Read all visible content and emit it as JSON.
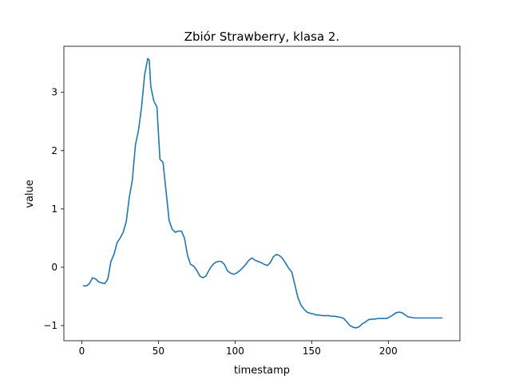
{
  "chart_data": {
    "type": "line",
    "title": "Zbiór Strawberry, klasa 2.",
    "xlabel": "timestamp",
    "ylabel": "value",
    "xlim": [
      -11.7,
      246.7
    ],
    "ylim": [
      -1.26,
      3.79
    ],
    "xticks": [
      0,
      50,
      100,
      150,
      200
    ],
    "yticks": [
      -1,
      0,
      1,
      2,
      3
    ],
    "grid": false,
    "line_color": "#1f77b4",
    "series": [
      {
        "x": [
          1,
          3,
          5,
          7,
          9,
          11,
          13,
          15,
          17,
          19,
          21,
          23,
          25,
          27,
          29,
          31,
          33,
          35,
          37,
          39,
          41,
          43,
          44,
          45,
          47,
          49,
          51,
          53,
          55,
          57,
          59,
          61,
          63,
          65,
          67,
          69,
          71,
          73,
          75,
          77,
          79,
          81,
          83,
          85,
          87,
          89,
          91,
          93,
          95,
          97,
          99,
          101,
          103,
          105,
          107,
          109,
          111,
          113,
          115,
          117,
          119,
          121,
          123,
          125,
          127,
          129,
          131,
          133,
          135,
          137,
          139,
          141,
          143,
          145,
          147,
          149,
          151,
          153,
          155,
          157,
          159,
          161,
          163,
          165,
          167,
          169,
          171,
          173,
          175,
          177,
          179,
          181,
          183,
          185,
          187,
          189,
          191,
          193,
          195,
          197,
          199,
          201,
          203,
          205,
          207,
          209,
          211,
          213,
          215,
          217,
          219,
          221,
          223,
          225,
          227,
          229,
          231,
          233,
          235
        ],
        "y": [
          -0.32,
          -0.32,
          -0.28,
          -0.18,
          -0.2,
          -0.25,
          -0.27,
          -0.28,
          -0.2,
          0.1,
          0.22,
          0.42,
          0.5,
          0.6,
          0.78,
          1.2,
          1.5,
          2.1,
          2.35,
          2.75,
          3.3,
          3.58,
          3.55,
          3.1,
          2.85,
          2.75,
          1.85,
          1.8,
          1.3,
          0.8,
          0.65,
          0.6,
          0.62,
          0.62,
          0.5,
          0.2,
          0.05,
          0.02,
          -0.05,
          -0.15,
          -0.18,
          -0.15,
          -0.05,
          0.03,
          0.08,
          0.1,
          0.1,
          0.05,
          -0.06,
          -0.1,
          -0.12,
          -0.1,
          -0.06,
          -0.01,
          0.05,
          0.12,
          0.16,
          0.12,
          0.1,
          0.08,
          0.05,
          0.03,
          0.08,
          0.18,
          0.22,
          0.2,
          0.15,
          0.07,
          -0.02,
          -0.08,
          -0.3,
          -0.52,
          -0.65,
          -0.72,
          -0.77,
          -0.79,
          -0.8,
          -0.82,
          -0.82,
          -0.83,
          -0.83,
          -0.83,
          -0.84,
          -0.84,
          -0.85,
          -0.86,
          -0.88,
          -0.94,
          -1.0,
          -1.03,
          -1.04,
          -1.02,
          -0.97,
          -0.94,
          -0.9,
          -0.89,
          -0.89,
          -0.88,
          -0.88,
          -0.88,
          -0.88,
          -0.85,
          -0.82,
          -0.78,
          -0.77,
          -0.78,
          -0.82,
          -0.85,
          -0.86,
          -0.87,
          -0.87,
          -0.87,
          -0.87,
          -0.87,
          -0.87,
          -0.87,
          -0.87,
          -0.87,
          -0.87
        ]
      }
    ]
  }
}
